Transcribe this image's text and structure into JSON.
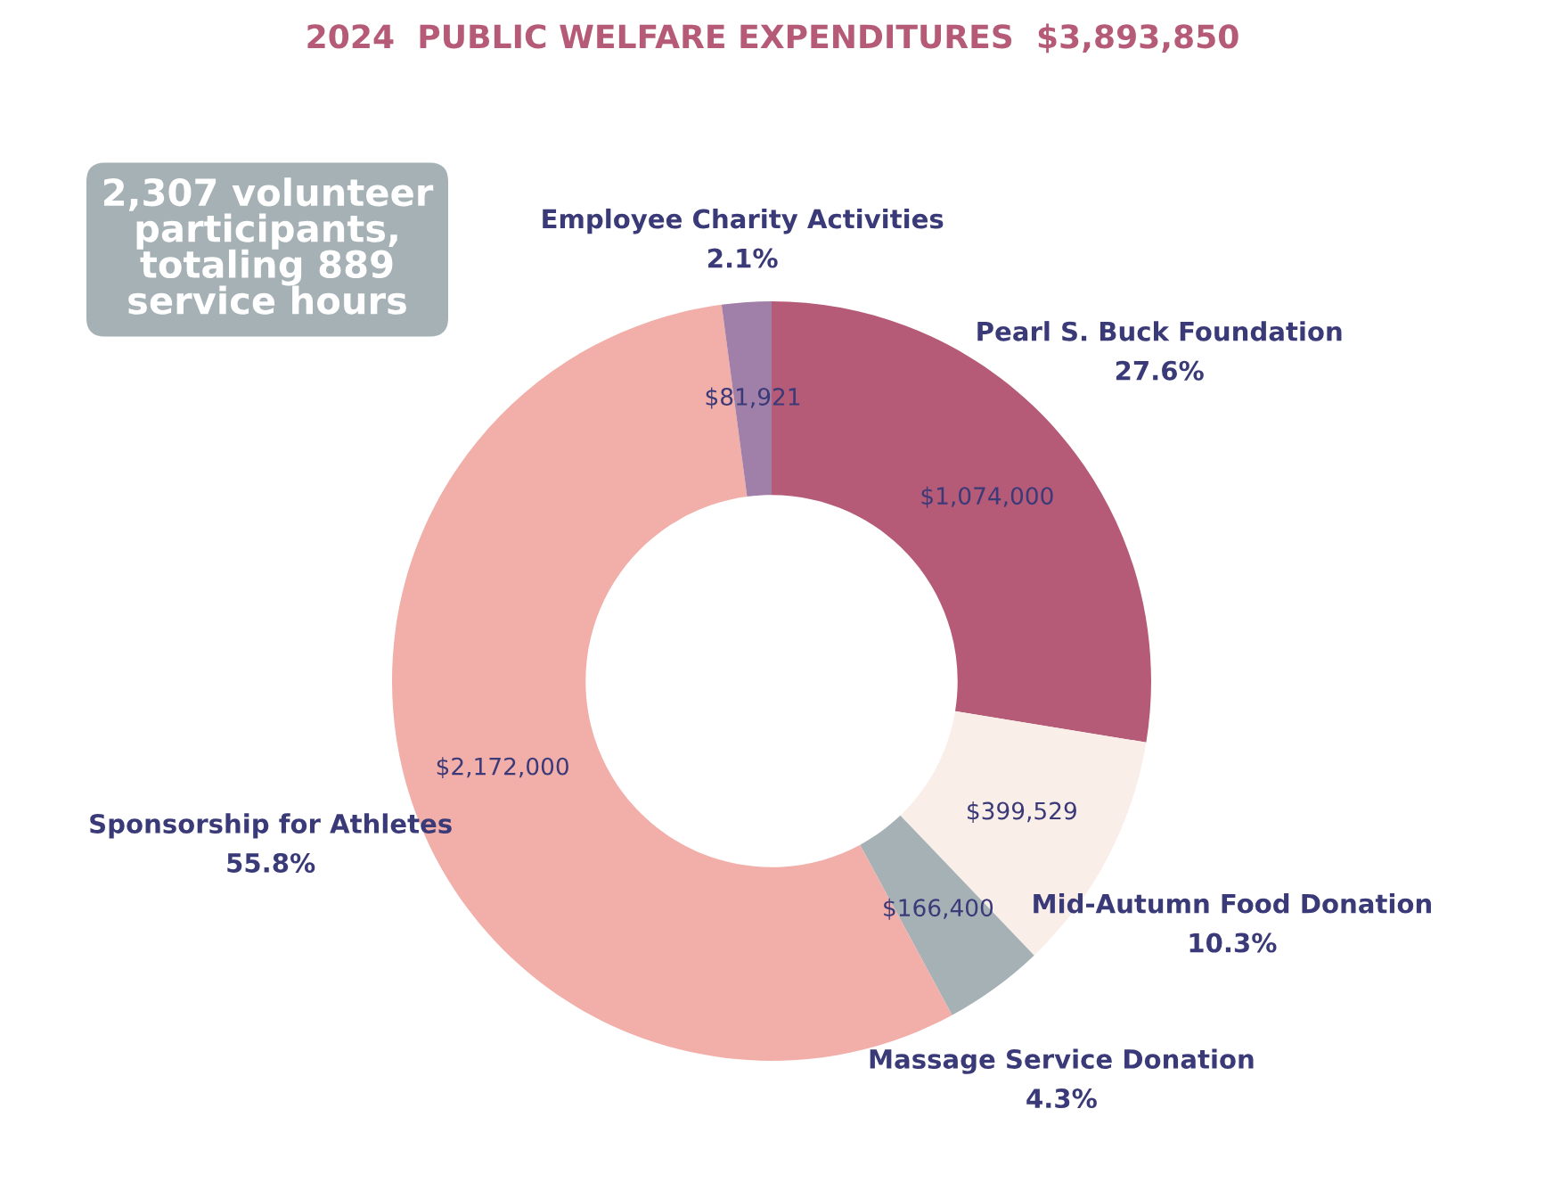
{
  "chart_data": {
    "type": "donut",
    "title": "2024  PUBLIC WELFARE EXPENDITURES  $3,893,850",
    "categories": [
      "Pearl S. Buck Foundation",
      "Mid-Autumn Food Donation",
      "Massage Service Donation",
      "Sponsorship for Athletes",
      "Employee Charity Activities"
    ],
    "values": [
      1074000,
      399529,
      166400,
      2172000,
      81921
    ],
    "colors": [
      "#b55b77",
      "#f9eee8",
      "#a6b1b6",
      "#f2aea8",
      "#a07fa8"
    ],
    "value_labels": [
      "$1,074,000",
      "$399,529",
      "$166,400",
      "$2,172,000",
      "$81,921"
    ],
    "annotations": [
      "2,307 volunteer\nparticipants,\ntotaling 889\nservice hours",
      "27.6%",
      "10.3%",
      "4.3%",
      "55.8%",
      "2.1%"
    ],
    "legend": false
  }
}
